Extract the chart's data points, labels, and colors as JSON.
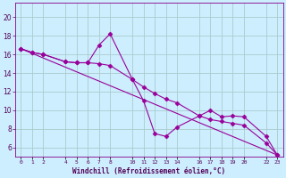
{
  "xlabel": "Windchill (Refroidissement éolien,°C)",
  "bg_color": "#cceeff",
  "grid_color": "#aacccc",
  "line_color": "#990099",
  "x_ticks": [
    0,
    1,
    2,
    4,
    5,
    6,
    7,
    8,
    10,
    11,
    12,
    13,
    14,
    16,
    17,
    18,
    19,
    20,
    22,
    23
  ],
  "x_tick_labels": [
    "0",
    "1",
    "2",
    "4",
    "5",
    "6",
    "7",
    "8",
    "10",
    "11",
    "12",
    "13",
    "14",
    "16",
    "17",
    "18",
    "19",
    "20",
    "22",
    "23"
  ],
  "ylim": [
    5.0,
    21.5
  ],
  "xlim": [
    -0.5,
    23.5
  ],
  "yticks": [
    6,
    8,
    10,
    12,
    14,
    16,
    18,
    20
  ],
  "series1_x": [
    0,
    1,
    2,
    4,
    5,
    6,
    7,
    8,
    10,
    11,
    12,
    13,
    14,
    16,
    17,
    18,
    19,
    20,
    22,
    23
  ],
  "series1_y": [
    16.6,
    16.2,
    16.0,
    15.2,
    15.1,
    15.1,
    17.0,
    18.2,
    13.3,
    11.0,
    7.5,
    7.2,
    8.2,
    9.4,
    10.0,
    9.3,
    9.4,
    9.3,
    7.2,
    5.2
  ],
  "series2_x": [
    0,
    1,
    2,
    4,
    5,
    6,
    7,
    8,
    10,
    11,
    12,
    13,
    14,
    16,
    17,
    18,
    19,
    20,
    22,
    23
  ],
  "series2_y": [
    16.6,
    16.2,
    16.0,
    15.2,
    15.1,
    15.1,
    15.0,
    14.8,
    13.3,
    12.5,
    11.8,
    11.2,
    10.8,
    9.4,
    9.0,
    8.8,
    8.6,
    8.4,
    6.5,
    5.2
  ],
  "series3_x": [
    0,
    23
  ],
  "series3_y": [
    16.6,
    5.2
  ]
}
